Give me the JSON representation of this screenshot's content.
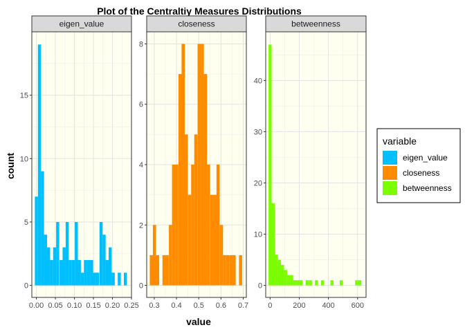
{
  "chart_data": {
    "type": "bar",
    "title": "Plot of the Centraltiy Measures Distributions",
    "xlabel": "value",
    "ylabel": "count",
    "legend": {
      "title": "variable",
      "position": "right",
      "entries": [
        {
          "label": "eigen_value",
          "color": "#00bfff"
        },
        {
          "label": "closeness",
          "color": "#ff8c00"
        },
        {
          "label": "betweenness",
          "color": "#7cfc00"
        }
      ]
    },
    "panel_background": "#fffff0",
    "grid": true,
    "facets": [
      {
        "strip": "eigen_value",
        "color": "#00bfff",
        "xlim": [
          -0.012,
          0.25
        ],
        "ylim": [
          -0.95,
          20
        ],
        "xticks": [
          0.0,
          0.05,
          0.1,
          0.15,
          0.2,
          0.25
        ],
        "xtick_labels": [
          "0.00",
          "0.05",
          "0.10",
          "0.15",
          "0.20",
          "0.25"
        ],
        "yticks": [
          0,
          5,
          10,
          15
        ],
        "ytick_labels": [
          "0",
          "5",
          "10",
          "15"
        ],
        "binwidth": 0.0081,
        "bins": [
          [
            0.0,
            7
          ],
          [
            0.008,
            19
          ],
          [
            0.016,
            9
          ],
          [
            0.024,
            4
          ],
          [
            0.032,
            3
          ],
          [
            0.04,
            2
          ],
          [
            0.048,
            3
          ],
          [
            0.056,
            5
          ],
          [
            0.065,
            2
          ],
          [
            0.073,
            3
          ],
          [
            0.081,
            5
          ],
          [
            0.089,
            2
          ],
          [
            0.097,
            2
          ],
          [
            0.105,
            5
          ],
          [
            0.113,
            2
          ],
          [
            0.121,
            1
          ],
          [
            0.129,
            2
          ],
          [
            0.137,
            2
          ],
          [
            0.145,
            2
          ],
          [
            0.153,
            1
          ],
          [
            0.161,
            1
          ],
          [
            0.17,
            5
          ],
          [
            0.178,
            4
          ],
          [
            0.186,
            2
          ],
          [
            0.194,
            3
          ],
          [
            0.202,
            1
          ],
          [
            0.21,
            0
          ],
          [
            0.218,
            1
          ],
          [
            0.226,
            0
          ],
          [
            0.234,
            1
          ]
        ]
      },
      {
        "strip": "closeness",
        "color": "#ff8c00",
        "xlim": [
          0.266,
          0.714
        ],
        "ylim": [
          -0.4,
          8.4
        ],
        "xticks": [
          0.3,
          0.4,
          0.5,
          0.6,
          0.7
        ],
        "xtick_labels": [
          "0.3",
          "0.4",
          "0.5",
          "0.6",
          "0.7"
        ],
        "yticks": [
          0,
          2,
          4,
          6,
          8
        ],
        "ytick_labels": [
          "0",
          "2",
          "4",
          "6",
          "8"
        ],
        "binwidth": 0.01431,
        "bins": [
          [
            0.287,
            1
          ],
          [
            0.301,
            2
          ],
          [
            0.315,
            1
          ],
          [
            0.33,
            0
          ],
          [
            0.344,
            1
          ],
          [
            0.358,
            1
          ],
          [
            0.373,
            2
          ],
          [
            0.387,
            4
          ],
          [
            0.401,
            4
          ],
          [
            0.416,
            7
          ],
          [
            0.43,
            8
          ],
          [
            0.444,
            5
          ],
          [
            0.459,
            3
          ],
          [
            0.473,
            4
          ],
          [
            0.487,
            5
          ],
          [
            0.502,
            8
          ],
          [
            0.516,
            8
          ],
          [
            0.53,
            7
          ],
          [
            0.544,
            4
          ],
          [
            0.559,
            3
          ],
          [
            0.573,
            3
          ],
          [
            0.587,
            4
          ],
          [
            0.602,
            2
          ],
          [
            0.616,
            1
          ],
          [
            0.63,
            1
          ],
          [
            0.645,
            1
          ],
          [
            0.659,
            1
          ],
          [
            0.673,
            0
          ],
          [
            0.688,
            1
          ],
          [
            0.702,
            0
          ]
        ]
      },
      {
        "strip": "betweenness",
        "color": "#7cfc00",
        "xlim": [
          -30,
          658
        ],
        "ylim": [
          -2.35,
          49.5
        ],
        "xticks": [
          0,
          200,
          400,
          600
        ],
        "xtick_labels": [
          "0",
          "200",
          "400",
          "600"
        ],
        "yticks": [
          0,
          10,
          20,
          30,
          40
        ],
        "ytick_labels": [
          "0",
          "10",
          "20",
          "30",
          "40"
        ],
        "binwidth": 21.2,
        "bins": [
          [
            0,
            47
          ],
          [
            21,
            16
          ],
          [
            42,
            6
          ],
          [
            64,
            5
          ],
          [
            85,
            4
          ],
          [
            106,
            3
          ],
          [
            127,
            2
          ],
          [
            148,
            2
          ],
          [
            170,
            1
          ],
          [
            191,
            1
          ],
          [
            212,
            1
          ],
          [
            233,
            0
          ],
          [
            254,
            1
          ],
          [
            276,
            1
          ],
          [
            297,
            0
          ],
          [
            318,
            1
          ],
          [
            339,
            0
          ],
          [
            360,
            1
          ],
          [
            382,
            0
          ],
          [
            403,
            0
          ],
          [
            424,
            1
          ],
          [
            445,
            0
          ],
          [
            466,
            0
          ],
          [
            488,
            1
          ],
          [
            509,
            0
          ],
          [
            530,
            0
          ],
          [
            551,
            0
          ],
          [
            572,
            0
          ],
          [
            594,
            1
          ],
          [
            615,
            1
          ]
        ]
      }
    ]
  }
}
